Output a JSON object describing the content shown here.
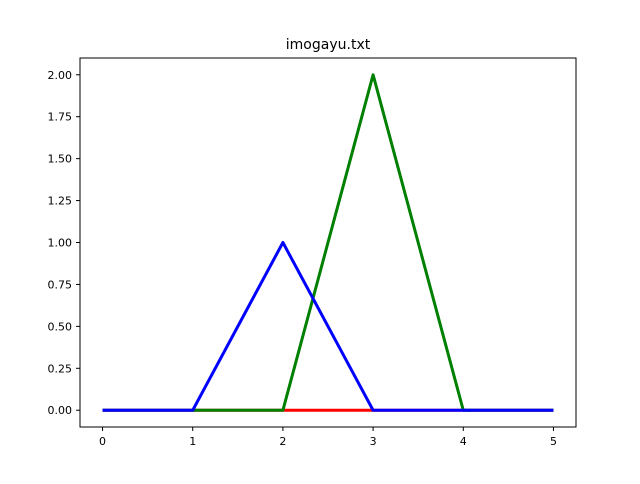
{
  "chart_data": {
    "type": "line",
    "title": "imogayu.txt",
    "xlabel": "",
    "ylabel": "",
    "xlim": [
      -0.25,
      5.25
    ],
    "ylim": [
      -0.1,
      2.1
    ],
    "xticks": [
      0,
      1,
      2,
      3,
      4,
      5
    ],
    "xtick_labels": [
      "0",
      "1",
      "2",
      "3",
      "4",
      "5"
    ],
    "yticks": [
      0,
      0.25,
      0.5,
      0.75,
      1.0,
      1.25,
      1.5,
      1.75,
      2.0
    ],
    "ytick_labels": [
      "0.00",
      "0.25",
      "0.50",
      "0.75",
      "1.00",
      "1.25",
      "1.50",
      "1.75",
      "2.00"
    ],
    "grid": false,
    "legend": "none",
    "series": [
      {
        "color": "#ff0000",
        "x": [
          0,
          1,
          2,
          3,
          4,
          5
        ],
        "y": [
          0,
          0,
          0,
          0,
          0,
          0
        ]
      },
      {
        "color": "#008000",
        "x": [
          0,
          1,
          2,
          3,
          4,
          5
        ],
        "y": [
          0,
          0,
          0,
          2,
          0,
          0
        ]
      },
      {
        "color": "#0000ff",
        "x": [
          0,
          1,
          2,
          3,
          4,
          5
        ],
        "y": [
          0,
          0,
          1,
          0,
          0,
          0
        ]
      }
    ]
  }
}
